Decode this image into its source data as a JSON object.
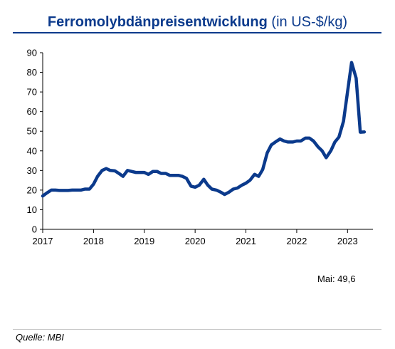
{
  "chart_data": {
    "type": "line",
    "title": "Ferromolybdänpreisentwicklung",
    "title_unit": "(in US-$/kg)",
    "xlabel": "",
    "ylabel": "",
    "ylim": [
      0,
      90
    ],
    "yticks": [
      0,
      10,
      20,
      30,
      40,
      50,
      60,
      70,
      80,
      90
    ],
    "xlim": [
      2017,
      2023.5
    ],
    "xticks": [
      "2017",
      "2018",
      "2019",
      "2020",
      "2021",
      "2022",
      "2023"
    ],
    "grid": false,
    "legend": "none",
    "line_color": "#0b3a8c",
    "series": [
      {
        "x": [
          2017.0,
          2017.08,
          2017.17,
          2017.25,
          2017.33,
          2017.42,
          2017.5,
          2017.58,
          2017.67,
          2017.75,
          2017.83,
          2017.92,
          2018.0,
          2018.08,
          2018.17,
          2018.25,
          2018.33,
          2018.42,
          2018.5,
          2018.58,
          2018.67,
          2018.75,
          2018.83,
          2018.92,
          2019.0,
          2019.08,
          2019.17,
          2019.25,
          2019.33,
          2019.42,
          2019.5,
          2019.58,
          2019.67,
          2019.75,
          2019.83,
          2019.92,
          2020.0,
          2020.08,
          2020.17,
          2020.25,
          2020.33,
          2020.42,
          2020.5,
          2020.58,
          2020.67,
          2020.75,
          2020.83,
          2020.92,
          2021.0,
          2021.08,
          2021.17,
          2021.25,
          2021.33,
          2021.42,
          2021.5,
          2021.58,
          2021.67,
          2021.75,
          2021.83,
          2021.92,
          2022.0,
          2022.08,
          2022.17,
          2022.25,
          2022.33,
          2022.42,
          2022.5,
          2022.58,
          2022.67,
          2022.75,
          2022.83,
          2022.92,
          2023.0,
          2023.08,
          2023.17,
          2023.25,
          2023.33
        ],
        "y": [
          17,
          18.5,
          20,
          20,
          19.8,
          19.8,
          19.8,
          20,
          20,
          20,
          20.5,
          20.5,
          23,
          27,
          30,
          31,
          30,
          29.8,
          28.5,
          27,
          30,
          29.5,
          29,
          29,
          29,
          28,
          29.5,
          29.5,
          28.5,
          28.5,
          27.5,
          27.5,
          27.5,
          27,
          26,
          22,
          21.5,
          22.5,
          25.5,
          22.5,
          20.5,
          20,
          19,
          17.8,
          19,
          20.5,
          21,
          22.5,
          23.5,
          25,
          28,
          27,
          30.5,
          39,
          43,
          44.5,
          46,
          45,
          44.5,
          44.5,
          45,
          45,
          46.5,
          46.5,
          45,
          42,
          40,
          36.5,
          40,
          44.5,
          47,
          55,
          70,
          85,
          77,
          49.5,
          49.6
        ]
      }
    ]
  },
  "annotation": {
    "latest": "Mai: 49,6"
  },
  "source": "Quelle: MBI"
}
